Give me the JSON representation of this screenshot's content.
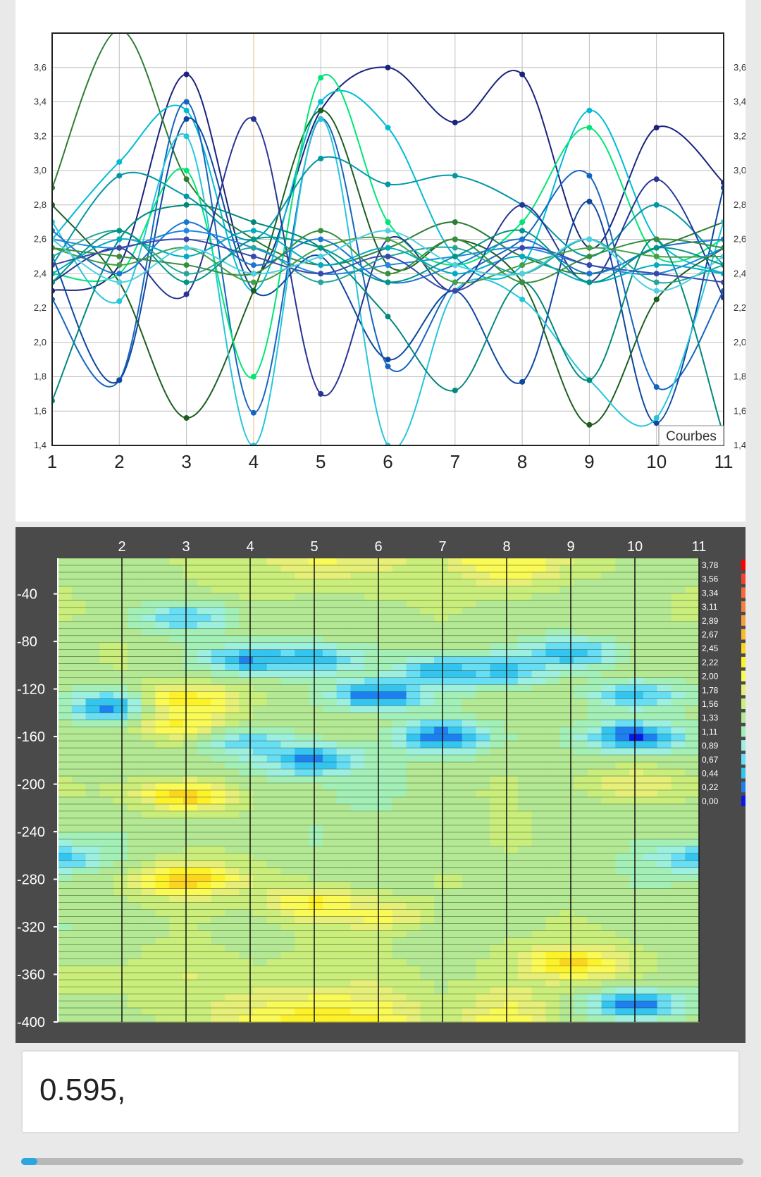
{
  "input": {
    "value": "0.595,"
  },
  "progress": {
    "fraction": 0.022
  },
  "chart_data": [
    {
      "type": "line",
      "legend": "Courbes",
      "legend_position": "bottom-right",
      "x": [
        1,
        2,
        3,
        4,
        5,
        6,
        7,
        8,
        9,
        10,
        11
      ],
      "xticks": [
        "1",
        "2",
        "3",
        "4",
        "5",
        "6",
        "7",
        "8",
        "9",
        "10",
        "11"
      ],
      "ylim": [
        1.4,
        3.8
      ],
      "yticks": [
        "1,4",
        "1,6",
        "1,8",
        "2,0",
        "2,2",
        "2,4",
        "2,6",
        "2,8",
        "3,0",
        "3,2",
        "3,4",
        "3,6"
      ],
      "grid": true,
      "series": [
        {
          "color": "#1a237e",
          "values": [
            2.3,
            2.45,
            3.56,
            2.4,
            3.35,
            3.6,
            3.28,
            3.56,
            2.55,
            3.25,
            2.93
          ]
        },
        {
          "color": "#2e7d32",
          "values": [
            2.9,
            3.82,
            2.95,
            2.6,
            2.45,
            2.55,
            2.7,
            2.5,
            2.4,
            2.55,
            2.7
          ]
        },
        {
          "color": "#00bcd4",
          "values": [
            2.6,
            3.05,
            3.35,
            2.3,
            3.4,
            3.25,
            2.5,
            2.45,
            3.35,
            2.6,
            2.4
          ]
        },
        {
          "color": "#1565c0",
          "values": [
            2.25,
            1.78,
            3.4,
            1.59,
            3.3,
            1.86,
            2.35,
            2.6,
            2.97,
            1.74,
            2.3
          ]
        },
        {
          "color": "#0d47a1",
          "values": [
            2.5,
            1.78,
            3.3,
            2.3,
            2.5,
            1.9,
            2.3,
            1.77,
            2.82,
            1.53,
            2.9
          ]
        },
        {
          "color": "#1b5e20",
          "values": [
            2.8,
            2.35,
            1.56,
            2.3,
            3.35,
            2.45,
            2.6,
            2.35,
            1.52,
            2.25,
            2.55
          ]
        },
        {
          "color": "#26c6da",
          "values": [
            2.7,
            2.24,
            3.2,
            1.4,
            3.3,
            1.4,
            2.3,
            2.25,
            1.78,
            1.56,
            2.7
          ]
        },
        {
          "color": "#00e676",
          "values": [
            2.4,
            2.4,
            3.0,
            1.8,
            3.54,
            2.7,
            2.45,
            2.7,
            3.25,
            2.5,
            2.6
          ]
        },
        {
          "color": "#0097a7",
          "values": [
            2.45,
            2.97,
            2.85,
            2.6,
            3.07,
            2.92,
            2.97,
            2.8,
            2.5,
            2.8,
            2.45
          ]
        },
        {
          "color": "#283593",
          "values": [
            2.35,
            2.55,
            2.28,
            3.3,
            1.7,
            2.6,
            2.3,
            2.8,
            2.35,
            2.95,
            2.26
          ]
        },
        {
          "color": "#00897b",
          "values": [
            1.66,
            2.6,
            2.8,
            2.7,
            2.55,
            2.15,
            1.72,
            2.35,
            1.78,
            2.6,
            1.46
          ]
        },
        {
          "color": "#1e88e5",
          "values": [
            2.6,
            2.55,
            2.65,
            2.55,
            2.4,
            2.45,
            2.5,
            2.55,
            2.45,
            2.4,
            2.55
          ]
        },
        {
          "color": "#43a047",
          "values": [
            2.55,
            2.45,
            2.55,
            2.35,
            2.55,
            2.6,
            2.35,
            2.45,
            2.55,
            2.5,
            2.5
          ]
        },
        {
          "color": "#26a69a",
          "values": [
            2.5,
            2.65,
            2.4,
            2.55,
            2.35,
            2.5,
            2.55,
            2.4,
            2.6,
            2.35,
            2.45
          ]
        },
        {
          "color": "#1976d2",
          "values": [
            2.65,
            2.4,
            2.7,
            2.45,
            2.6,
            2.35,
            2.45,
            2.6,
            2.4,
            2.55,
            2.6
          ]
        },
        {
          "color": "#00acc1",
          "values": [
            2.4,
            2.6,
            2.5,
            2.65,
            2.45,
            2.55,
            2.4,
            2.5,
            2.35,
            2.45,
            2.4
          ]
        },
        {
          "color": "#388e3c",
          "values": [
            2.55,
            2.5,
            2.45,
            2.4,
            2.65,
            2.4,
            2.6,
            2.35,
            2.5,
            2.6,
            2.55
          ]
        },
        {
          "color": "#3949ab",
          "values": [
            2.45,
            2.55,
            2.6,
            2.5,
            2.4,
            2.5,
            2.3,
            2.55,
            2.45,
            2.4,
            2.35
          ]
        },
        {
          "color": "#4dd0e1",
          "values": [
            2.6,
            2.35,
            2.55,
            2.4,
            2.5,
            2.65,
            2.45,
            2.4,
            2.6,
            2.3,
            2.5
          ]
        },
        {
          "color": "#009688",
          "values": [
            2.35,
            2.65,
            2.35,
            2.6,
            2.55,
            2.35,
            2.5,
            2.65,
            2.35,
            2.55,
            2.45
          ]
        }
      ]
    },
    {
      "type": "heatmap",
      "x": [
        1,
        2,
        3,
        4,
        5,
        6,
        7,
        8,
        9,
        10,
        11
      ],
      "xticks": [
        "2",
        "3",
        "4",
        "5",
        "6",
        "7",
        "8",
        "9",
        "10",
        "11"
      ],
      "y": [
        -400,
        -360,
        -320,
        -280,
        -240,
        -200,
        -160,
        -120,
        -80,
        -40,
        -10
      ],
      "yticks": [
        "-40",
        "-80",
        "-120",
        "-160",
        "-200",
        "-240",
        "-280",
        "-320",
        "-360",
        "-400"
      ],
      "colorbar": {
        "labels": [
          "3,78",
          "3,56",
          "3,34",
          "3,11",
          "2,89",
          "2,67",
          "2,45",
          "2,22",
          "2,00",
          "1,78",
          "1,56",
          "1,33",
          "1,11",
          "0,89",
          "0,67",
          "0,44",
          "0,22",
          "0,00"
        ],
        "colors": [
          "#ff0000",
          "#f8412c",
          "#f56b39",
          "#f57f3c",
          "#f6a03a",
          "#f9bb2d",
          "#fbd51f",
          "#fdf22a",
          "#fafa57",
          "#e6f078",
          "#c9ee7c",
          "#b3e894",
          "#a2f0b8",
          "#9df0e0",
          "#68def5",
          "#33c5f0",
          "#1d7ff0",
          "#0a18e6"
        ]
      },
      "rows": [
        [
          1.5,
          1.5,
          1.6,
          2.1,
          2.5,
          2.3,
          1.6,
          2.3,
          1.5,
          1.6,
          1.5
        ],
        [
          1.6,
          1.6,
          1.8,
          1.6,
          1.6,
          1.7,
          1.5,
          1.6,
          1.7,
          1.6,
          1.4
        ],
        [
          1.3,
          1.4,
          1.6,
          1.4,
          1.6,
          1.5,
          1.3,
          1.5,
          1.6,
          1.5,
          1.4
        ],
        [
          1.5,
          1.5,
          1.7,
          1.6,
          1.5,
          1.4,
          1.6,
          1.5,
          1.5,
          1.3,
          1.4
        ],
        [
          1.4,
          1.3,
          1.5,
          1.5,
          1.3,
          1.5,
          1.4,
          1.6,
          1.5,
          1.4,
          1.5
        ],
        [
          1.6,
          1.5,
          1.4,
          1.4,
          1.4,
          1.2,
          1.5,
          1.6,
          1.4,
          1.5,
          1.5
        ],
        [
          1.5,
          1.4,
          1.5,
          1.3,
          1.5,
          1.5,
          1.3,
          1.5,
          1.4,
          1.5,
          1.4
        ],
        [
          1.4,
          1.5,
          1.6,
          1.5,
          1.5,
          1.6,
          1.4,
          1.5,
          1.6,
          1.5,
          1.5
        ],
        [
          1.5,
          1.6,
          1.4,
          1.5,
          1.6,
          1.4,
          1.5,
          1.4,
          1.5,
          1.6,
          1.5
        ],
        [
          1.6,
          1.5,
          1.5,
          1.6,
          1.4,
          1.5,
          1.6,
          1.5,
          1.4,
          1.5,
          1.6
        ],
        [
          1.5,
          1.4,
          1.6,
          1.7,
          2.1,
          1.9,
          1.6,
          2.2,
          1.7,
          1.5,
          1.5
        ]
      ],
      "hotspots": [
        {
          "x": 2.0,
          "y": -135,
          "value": 0.1
        },
        {
          "x": 3.0,
          "y": -130,
          "value": 2.4
        },
        {
          "x": 3.0,
          "y": -150,
          "value": 2.3
        },
        {
          "x": 3.0,
          "y": -210,
          "value": 2.55
        },
        {
          "x": 3.0,
          "y": -280,
          "value": 2.65
        },
        {
          "x": 3.0,
          "y": -60,
          "value": 0.7
        },
        {
          "x": 4.0,
          "y": -165,
          "value": 0.8
        },
        {
          "x": 4.0,
          "y": -95,
          "value": 0.4
        },
        {
          "x": 5.0,
          "y": -300,
          "value": 2.3
        },
        {
          "x": 5.0,
          "y": -180,
          "value": 0.35
        },
        {
          "x": 5.0,
          "y": -95,
          "value": 0.5
        },
        {
          "x": 6.0,
          "y": -125,
          "value": 0.2
        },
        {
          "x": 6.0,
          "y": -310,
          "value": 2.1
        },
        {
          "x": 7.0,
          "y": -160,
          "value": 0.25
        },
        {
          "x": 7.0,
          "y": -105,
          "value": 0.45
        },
        {
          "x": 8.0,
          "y": -15,
          "value": 2.2
        },
        {
          "x": 8.0,
          "y": -105,
          "value": 0.6
        },
        {
          "x": 9.0,
          "y": -350,
          "value": 2.5
        },
        {
          "x": 9.0,
          "y": -90,
          "value": 0.5
        },
        {
          "x": 10.0,
          "y": -160,
          "value": 0.15
        },
        {
          "x": 10.0,
          "y": -125,
          "value": 0.6
        },
        {
          "x": 10.0,
          "y": -385,
          "value": 0.3
        },
        {
          "x": 10.0,
          "y": -200,
          "value": 2.0
        },
        {
          "x": 1.0,
          "y": -262,
          "value": 0.6
        },
        {
          "x": 11.0,
          "y": -262,
          "value": 0.6
        }
      ]
    }
  ]
}
